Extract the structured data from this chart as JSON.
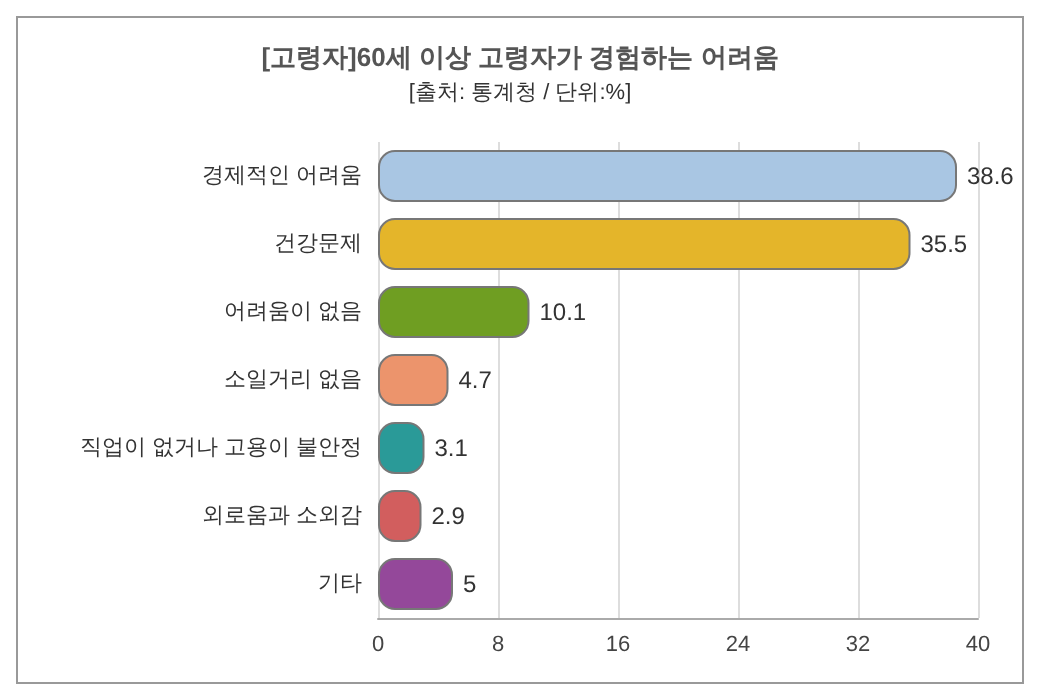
{
  "chart_data": {
    "type": "bar",
    "orientation": "horizontal",
    "title": "[고령자]60세 이상 고령자가 경험하는 어려움",
    "subtitle": "[출처: 통계청 / 단위:%]",
    "categories": [
      "경제적인 어려움",
      "건강문제",
      "어려움이 없음",
      "소일거리 없음",
      "직업이 없거나 고용이 불안정",
      "외로움과 소외감",
      "기타"
    ],
    "values": [
      38.6,
      35.5,
      10.1,
      4.7,
      3.1,
      2.9,
      5
    ],
    "colors": [
      "#a9c6e3",
      "#e4b52a",
      "#6f9e22",
      "#ec946c",
      "#2a9a98",
      "#d25e5e",
      "#94489a"
    ],
    "xlim": [
      0,
      40
    ],
    "xticks": [
      0,
      8,
      16,
      24,
      32,
      40
    ],
    "grid": "x",
    "data_labels": true
  }
}
